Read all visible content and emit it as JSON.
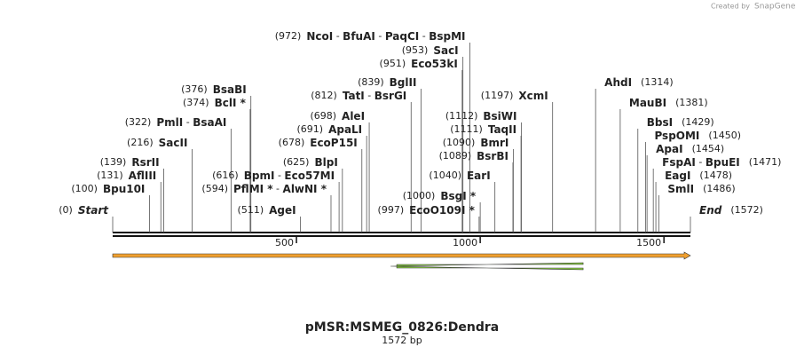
{
  "credit": "Created by",
  "brand": "SnapGene",
  "map": {
    "name": "pMSR:MSMEG_0826:Dendra",
    "length": 1572,
    "length_label": "1572 bp",
    "separator": " - ",
    "ticks": [
      500,
      1000,
      1500
    ],
    "start": {
      "position": 0,
      "position_label": "(0)",
      "label": "Start"
    },
    "end": {
      "position": 1572,
      "position_label": "(1572)",
      "label": "End"
    },
    "sites": [
      {
        "position": 100,
        "position_label": "(100)",
        "names": [
          "Bpu10I"
        ]
      },
      {
        "position": 131,
        "position_label": "(131)",
        "names": [
          "AflIII"
        ]
      },
      {
        "position": 139,
        "position_label": "(139)",
        "names": [
          "RsrII"
        ]
      },
      {
        "position": 216,
        "position_label": "(216)",
        "names": [
          "SacII"
        ]
      },
      {
        "position": 322,
        "position_label": "(322)",
        "names": [
          "PmlI",
          "BsaAI"
        ]
      },
      {
        "position": 374,
        "position_label": "(374)",
        "names": [
          "BclI *"
        ]
      },
      {
        "position": 376,
        "position_label": "(376)",
        "names": [
          "BsaBI"
        ]
      },
      {
        "position": 511,
        "position_label": "(511)",
        "names": [
          "AgeI"
        ]
      },
      {
        "position": 594,
        "position_label": "(594)",
        "names": [
          "PflMI *",
          "AlwNI *"
        ]
      },
      {
        "position": 616,
        "position_label": "(616)",
        "names": [
          "BpmI",
          "Eco57MI"
        ]
      },
      {
        "position": 625,
        "position_label": "(625)",
        "names": [
          "BlpI"
        ]
      },
      {
        "position": 678,
        "position_label": "(678)",
        "names": [
          "EcoP15I"
        ]
      },
      {
        "position": 691,
        "position_label": "(691)",
        "names": [
          "ApaLI"
        ]
      },
      {
        "position": 698,
        "position_label": "(698)",
        "names": [
          "AleI"
        ]
      },
      {
        "position": 812,
        "position_label": "(812)",
        "names": [
          "TatI",
          "BsrGI"
        ]
      },
      {
        "position": 839,
        "position_label": "(839)",
        "names": [
          "BglII"
        ]
      },
      {
        "position": 951,
        "position_label": "(951)",
        "names": [
          "Eco53kI"
        ]
      },
      {
        "position": 953,
        "position_label": "(953)",
        "names": [
          "SacI"
        ]
      },
      {
        "position": 972,
        "position_label": "(972)",
        "names": [
          "NcoI",
          "BfuAI",
          "PaqCI",
          "BspMI"
        ]
      },
      {
        "position": 997,
        "position_label": "(997)",
        "names": [
          "EcoO109I *"
        ]
      },
      {
        "position": 1000,
        "position_label": "(1000)",
        "names": [
          "BsgI *"
        ]
      },
      {
        "position": 1040,
        "position_label": "(1040)",
        "names": [
          "EarI"
        ]
      },
      {
        "position": 1089,
        "position_label": "(1089)",
        "names": [
          "BsrBI"
        ]
      },
      {
        "position": 1090,
        "position_label": "(1090)",
        "names": [
          "BmrI"
        ]
      },
      {
        "position": 1111,
        "position_label": "(1111)",
        "names": [
          "TaqII"
        ]
      },
      {
        "position": 1112,
        "position_label": "(1112)",
        "names": [
          "BsiWI"
        ]
      },
      {
        "position": 1197,
        "position_label": "(1197)",
        "names": [
          "XcmI"
        ]
      },
      {
        "position": 1314,
        "position_label": "(1314)",
        "names": [
          "AhdI"
        ]
      },
      {
        "position": 1381,
        "position_label": "(1381)",
        "names": [
          "MauBI"
        ]
      },
      {
        "position": 1429,
        "position_label": "(1429)",
        "names": [
          "BbsI"
        ]
      },
      {
        "position": 1450,
        "position_label": "(1450)",
        "names": [
          "PspOMI"
        ]
      },
      {
        "position": 1454,
        "position_label": "(1454)",
        "names": [
          "ApaI"
        ]
      },
      {
        "position": 1471,
        "position_label": "(1471)",
        "names": [
          "FspAI",
          "BpuEI"
        ]
      },
      {
        "position": 1478,
        "position_label": "(1478)",
        "names": [
          "EagI"
        ]
      },
      {
        "position": 1486,
        "position_label": "(1486)",
        "names": [
          "SmlI"
        ]
      }
    ],
    "features": [
      {
        "start": 0,
        "end": 1572,
        "strand": 1,
        "color": "#f0a030"
      },
      {
        "start": 756,
        "end": 1280,
        "strand": -1,
        "color": "#8ad040"
      }
    ]
  }
}
